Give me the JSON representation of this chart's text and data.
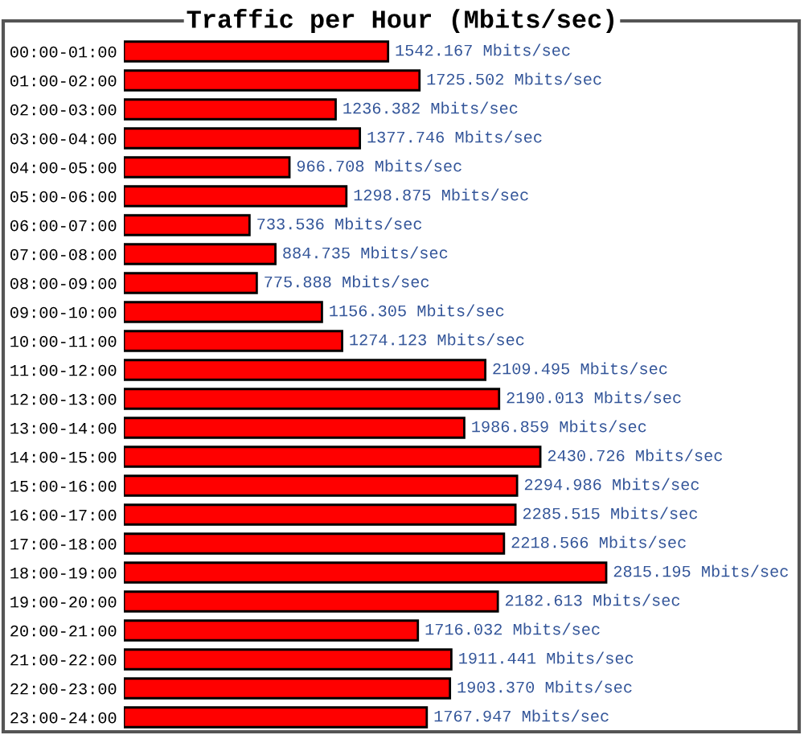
{
  "chart_data": {
    "type": "bar",
    "orientation": "horizontal",
    "title": "Traffic per Hour (Mbits/sec)",
    "categories": [
      "00:00-01:00",
      "01:00-02:00",
      "02:00-03:00",
      "03:00-04:00",
      "04:00-05:00",
      "05:00-06:00",
      "06:00-07:00",
      "07:00-08:00",
      "08:00-09:00",
      "09:00-10:00",
      "10:00-11:00",
      "11:00-12:00",
      "12:00-13:00",
      "13:00-14:00",
      "14:00-15:00",
      "15:00-16:00",
      "16:00-17:00",
      "17:00-18:00",
      "18:00-19:00",
      "19:00-20:00",
      "20:00-21:00",
      "21:00-22:00",
      "22:00-23:00",
      "23:00-24:00"
    ],
    "values": [
      1542.167,
      1725.502,
      1236.382,
      1377.746,
      966.708,
      1298.875,
      733.536,
      884.735,
      775.888,
      1156.305,
      1274.123,
      2109.495,
      2190.013,
      1986.859,
      2430.726,
      2294.986,
      2285.515,
      2218.566,
      2815.195,
      2182.613,
      1716.032,
      1911.441,
      1903.37,
      1767.947
    ],
    "value_labels": [
      "1542.167 Mbits/sec",
      "1725.502 Mbits/sec",
      "1236.382 Mbits/sec",
      "1377.746 Mbits/sec",
      "966.708 Mbits/sec",
      "1298.875 Mbits/sec",
      "733.536 Mbits/sec",
      "884.735 Mbits/sec",
      "775.888 Mbits/sec",
      "1156.305 Mbits/sec",
      "1274.123 Mbits/sec",
      "2109.495 Mbits/sec",
      "2190.013 Mbits/sec",
      "1986.859 Mbits/sec",
      "2430.726 Mbits/sec",
      "2294.986 Mbits/sec",
      "2285.515 Mbits/sec",
      "2218.566 Mbits/sec",
      "2815.195 Mbits/sec",
      "2182.613 Mbits/sec",
      "1716.032 Mbits/sec",
      "1911.441 Mbits/sec",
      "1903.370 Mbits/sec",
      "1767.947 Mbits/sec"
    ],
    "color": "#ff0000",
    "grid": false,
    "legend": false
  }
}
